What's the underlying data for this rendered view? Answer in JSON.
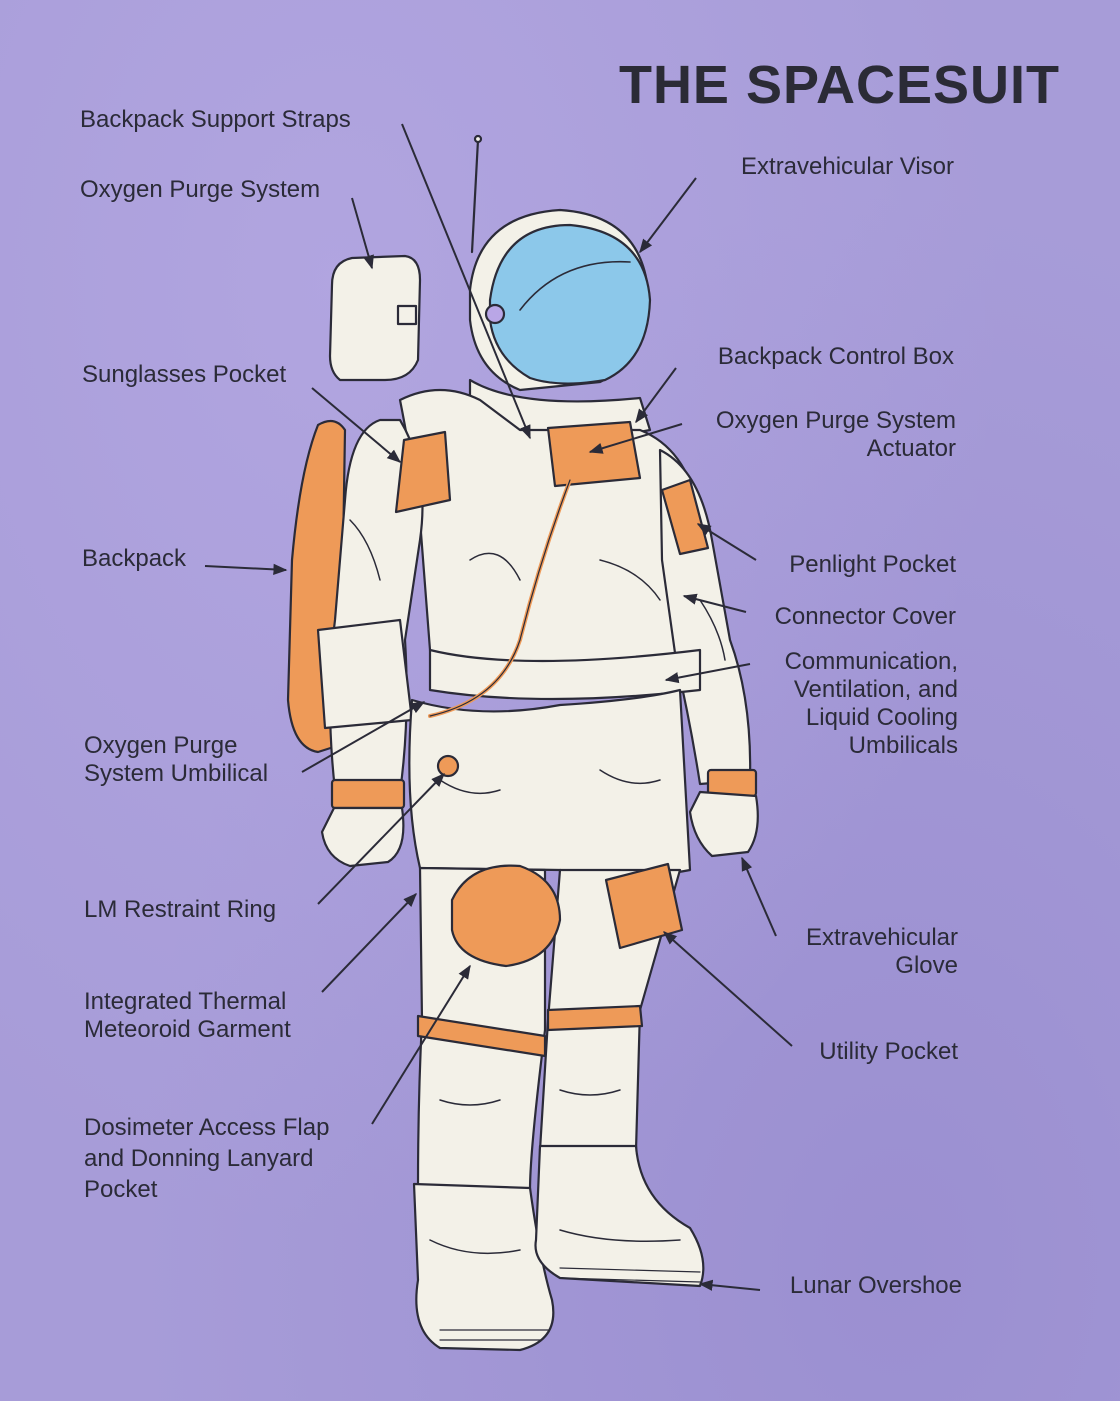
{
  "title": "THE SPACESUIT",
  "colors": {
    "background": "#a79cd8",
    "suit": "#f3f1e8",
    "accent_orange": "#ee9a58",
    "visor_blue": "#8cc8ea",
    "ink": "#2b2b38"
  },
  "labels_left": [
    {
      "key": "backpack_support_straps",
      "text": "Backpack Support Straps"
    },
    {
      "key": "oxygen_purge_system",
      "text": "Oxygen Purge System"
    },
    {
      "key": "sunglasses_pocket",
      "text": "Sunglasses Pocket"
    },
    {
      "key": "backpack",
      "text": "Backpack"
    },
    {
      "key": "oxygen_purge_system_umbilical",
      "text": "Oxygen Purge\nSystem Umbilical"
    },
    {
      "key": "lm_restraint_ring",
      "text": "LM Restraint Ring"
    },
    {
      "key": "integrated_thermal_meteoroid_garment",
      "text": "Integrated Thermal\nMeteoroid Garment"
    },
    {
      "key": "dosimeter_access_flap",
      "text": "Dosimeter Access Flap\nand Donning Lanyard\nPocket"
    }
  ],
  "labels_right": [
    {
      "key": "extravehicular_visor",
      "text": "Extravehicular Visor"
    },
    {
      "key": "backpack_control_box",
      "text": "Backpack Control Box"
    },
    {
      "key": "oxygen_purge_system_actuator",
      "text": "Oxygen Purge System\nActuator"
    },
    {
      "key": "penlight_pocket",
      "text": "Penlight Pocket"
    },
    {
      "key": "connector_cover",
      "text": "Connector Cover"
    },
    {
      "key": "umbilicals",
      "text": "Communication,\nVentilation, and\nLiquid Cooling\nUmbilicals"
    },
    {
      "key": "extravehicular_glove",
      "text": "Extravehicular\nGlove"
    },
    {
      "key": "utility_pocket",
      "text": "Utility Pocket"
    },
    {
      "key": "lunar_overshoe",
      "text": "Lunar Overshoe"
    }
  ]
}
